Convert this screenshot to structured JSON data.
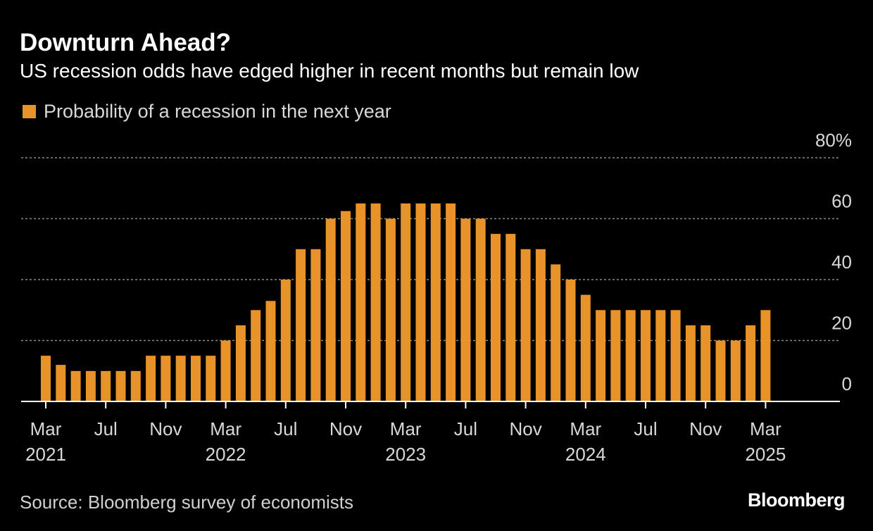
{
  "header": {
    "title": "Downturn Ahead?",
    "subtitle": "US recession odds have edged higher in recent months but remain low"
  },
  "legend": {
    "label": "Probability of a recession in the next year"
  },
  "footer": {
    "source": "Source: Bloomberg survey of economists",
    "brand": "Bloomberg"
  },
  "colors": {
    "background": "#000000",
    "bar": "#e8922a",
    "grid": "#8a8a8a",
    "axis": "#ffffff",
    "text": "#d8d8d8"
  },
  "chart_data": {
    "type": "bar",
    "title": "Downturn Ahead?",
    "subtitle": "US recession odds have edged higher in recent months but remain low",
    "series": [
      {
        "name": "Probability of a recession in the next year",
        "x": [
          "2021-03",
          "2021-04",
          "2021-05",
          "2021-06",
          "2021-07",
          "2021-08",
          "2021-09",
          "2021-10",
          "2021-11",
          "2021-12",
          "2022-01",
          "2022-02",
          "2022-03",
          "2022-04",
          "2022-05",
          "2022-06",
          "2022-07",
          "2022-08",
          "2022-09",
          "2022-10",
          "2022-11",
          "2022-12",
          "2023-01",
          "2023-02",
          "2023-03",
          "2023-04",
          "2023-05",
          "2023-06",
          "2023-07",
          "2023-08",
          "2023-09",
          "2023-10",
          "2023-11",
          "2023-12",
          "2024-01",
          "2024-02",
          "2024-03",
          "2024-04",
          "2024-05",
          "2024-06",
          "2024-07",
          "2024-08",
          "2024-09",
          "2024-10",
          "2024-11",
          "2024-12",
          "2025-01",
          "2025-02",
          "2025-03"
        ],
        "values": [
          15,
          12,
          10,
          10,
          10,
          10,
          10,
          15,
          15,
          15,
          15,
          15,
          20,
          25,
          30,
          33,
          40,
          50,
          50,
          60,
          62.5,
          65,
          65,
          60,
          65,
          65,
          65,
          65,
          60,
          60,
          55,
          55,
          50,
          50,
          45,
          40,
          35,
          30,
          30,
          30,
          30,
          30,
          30,
          25,
          25,
          20,
          20,
          25,
          30
        ]
      }
    ],
    "y_axis": {
      "ylim": [
        0,
        80
      ],
      "ticks": [
        0,
        20,
        40,
        60,
        80
      ],
      "tick_labels": [
        "0",
        "20",
        "40",
        "60",
        "80%"
      ],
      "position": "right"
    },
    "x_axis": {
      "tick_labels": [
        {
          "month": "Mar",
          "year": "2021",
          "x": "2021-03"
        },
        {
          "month": "Jul",
          "year": "",
          "x": "2021-07"
        },
        {
          "month": "Nov",
          "year": "",
          "x": "2021-11"
        },
        {
          "month": "Mar",
          "year": "2022",
          "x": "2022-03"
        },
        {
          "month": "Jul",
          "year": "",
          "x": "2022-07"
        },
        {
          "month": "Nov",
          "year": "",
          "x": "2022-11"
        },
        {
          "month": "Mar",
          "year": "2023",
          "x": "2023-03"
        },
        {
          "month": "Jul",
          "year": "",
          "x": "2023-07"
        },
        {
          "month": "Nov",
          "year": "",
          "x": "2023-11"
        },
        {
          "month": "Mar",
          "year": "2024",
          "x": "2024-03"
        },
        {
          "month": "Jul",
          "year": "",
          "x": "2024-07"
        },
        {
          "month": "Nov",
          "year": "",
          "x": "2024-11"
        },
        {
          "month": "Mar",
          "year": "2025",
          "x": "2025-03"
        }
      ]
    },
    "grid": true,
    "legend_position": "top-left"
  }
}
